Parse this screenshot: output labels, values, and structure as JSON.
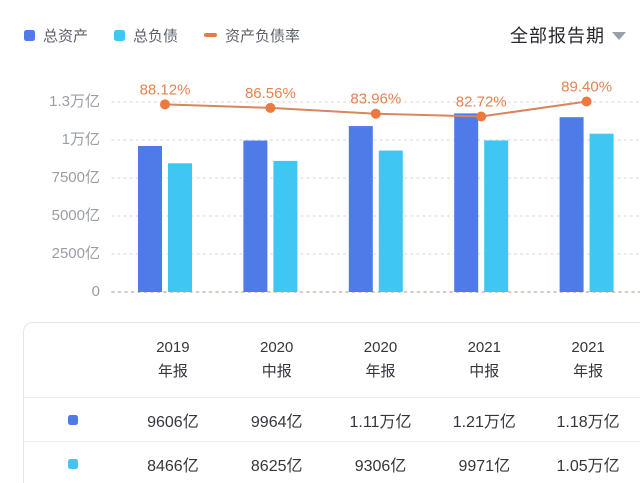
{
  "legend": {
    "items": [
      {
        "label": "总资产",
        "marker": "square",
        "color": "#4e7be8"
      },
      {
        "label": "总负债",
        "marker": "square",
        "color": "#3fc6f2"
      },
      {
        "label": "资产负债率",
        "marker": "dash",
        "color": "#ec7940"
      }
    ]
  },
  "period_selector": {
    "label": "全部报告期"
  },
  "chart_data": {
    "type": "bar",
    "title": "",
    "categories": [
      "2019年报",
      "2020中报",
      "2020年报",
      "2021中报",
      "2021年报"
    ],
    "series": [
      {
        "name": "总资产",
        "type": "bar",
        "color": "#4e7be8",
        "unit": "亿",
        "values": [
          9606,
          9964,
          11100,
          12100,
          11800
        ],
        "labels": [
          "9606亿",
          "9964亿",
          "1.11万亿",
          "1.21万亿",
          "1.18万亿"
        ]
      },
      {
        "name": "总负债",
        "type": "bar",
        "color": "#3fc6f2",
        "unit": "亿",
        "values": [
          8466,
          8625,
          9306,
          9971,
          10500
        ],
        "labels": [
          "8466亿",
          "8625亿",
          "9306亿",
          "9971亿",
          "1.05万亿"
        ]
      },
      {
        "name": "资产负债率",
        "type": "line",
        "color": "#ec7940",
        "unit": "%",
        "values": [
          88.12,
          86.56,
          83.96,
          82.72,
          89.4
        ],
        "labels": [
          "88.12%",
          "86.56%",
          "83.96%",
          "82.72%",
          "89.40%"
        ]
      }
    ],
    "y_axis": {
      "ticks": [
        {
          "label": "0",
          "value": 0
        },
        {
          "label": "2500亿",
          "value": 2500
        },
        {
          "label": "5000亿",
          "value": 5000
        },
        {
          "label": "7500亿",
          "value": 7500
        },
        {
          "label": "1万亿",
          "value": 10000
        },
        {
          "label": "1.3万亿",
          "value": 13000
        }
      ]
    },
    "grid": "dotted-horizontal",
    "legend_position": "top-left",
    "line_label_color": "#e5824f",
    "grid_color": "#e3e3e3",
    "baseline_color": "#c7b9ae",
    "tick_label_color": "#9a9ea5"
  },
  "table": {
    "columns": [
      {
        "line1": "2019",
        "line2": "年报"
      },
      {
        "line1": "2020",
        "line2": "中报"
      },
      {
        "line1": "2020",
        "line2": "年报"
      },
      {
        "line1": "2021",
        "line2": "中报"
      },
      {
        "line1": "2021",
        "line2": "年报"
      }
    ],
    "rows": [
      {
        "marker_color": "#4e7be8",
        "values": [
          "9606亿",
          "9964亿",
          "1.11万亿",
          "1.21万亿",
          "1.18万亿"
        ]
      },
      {
        "marker_color": "#3fc6f2",
        "values": [
          "8466亿",
          "8625亿",
          "9306亿",
          "9971亿",
          "1.05万亿"
        ]
      }
    ]
  }
}
